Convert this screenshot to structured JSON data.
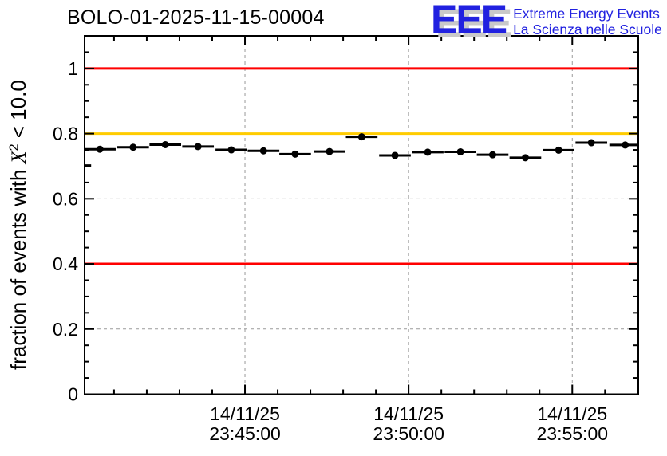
{
  "header": {
    "title": "BOLO-01-2025-11-15-00004",
    "logo": {
      "acronym": "EEE",
      "line1": "Extreme Energy Events",
      "line2": "La Scienza nelle Scuole",
      "blue": "#2121e0",
      "shadow_gray": "#c9c9c9"
    }
  },
  "chart_data": {
    "type": "scatter",
    "title": "BOLO-01-2025-11-15-00004",
    "xlabel": "",
    "ylabel": "fraction of events with X² < 10.0",
    "ylabel_parts": {
      "prefix": "fraction of events with ",
      "symbol": "X",
      "sup": "2",
      "suffix": " < 10.0"
    },
    "ylim": [
      0,
      1.1
    ],
    "x_range": [
      "23:40:06",
      "23:57:01"
    ],
    "date_label": "14/11/25",
    "grid": true,
    "legend": "none",
    "marker": "filled-circle",
    "error_bars": "x",
    "bar_halfwidth_s": 29,
    "colors": {
      "marker": "#000000",
      "frame": "#000000",
      "grid": "#9a9a9a",
      "red_line": "#ff0000",
      "orange_line": "#ffcc00"
    },
    "y_major_ticks": [
      {
        "v": 0,
        "label": "0"
      },
      {
        "v": 0.2,
        "label": "0.2"
      },
      {
        "v": 0.4,
        "label": "0.4"
      },
      {
        "v": 0.6,
        "label": "0.6"
      },
      {
        "v": 0.8,
        "label": "0.8"
      },
      {
        "v": 1.0,
        "label": "1"
      }
    ],
    "y_minor_step": 0.05,
    "x_minor_step_s": 60,
    "x_major_ticks": [
      {
        "time": "23:45:00",
        "line1": "14/11/25",
        "line2": "23:45:00"
      },
      {
        "time": "23:50:00",
        "line1": "14/11/25",
        "line2": "23:50:00"
      },
      {
        "time": "23:55:00",
        "line1": "14/11/25",
        "line2": "23:55:00"
      }
    ],
    "reference_lines": [
      {
        "y": 1.0,
        "color": "#ff0000"
      },
      {
        "y": 0.8,
        "color": "#ffcc00"
      },
      {
        "y": 0.4,
        "color": "#ff0000"
      }
    ],
    "points": [
      {
        "t": "23:39:49",
        "v": 0.702
      },
      {
        "t": "23:40:34",
        "v": 0.752
      },
      {
        "t": "23:41:35",
        "v": 0.758
      },
      {
        "t": "23:42:34",
        "v": 0.766
      },
      {
        "t": "23:43:34",
        "v": 0.76
      },
      {
        "t": "23:44:35",
        "v": 0.75
      },
      {
        "t": "23:45:34",
        "v": 0.747
      },
      {
        "t": "23:46:32",
        "v": 0.737
      },
      {
        "t": "23:47:35",
        "v": 0.745
      },
      {
        "t": "23:48:34",
        "v": 0.79
      },
      {
        "t": "23:49:35",
        "v": 0.733
      },
      {
        "t": "23:50:35",
        "v": 0.743
      },
      {
        "t": "23:51:35",
        "v": 0.744
      },
      {
        "t": "23:52:34",
        "v": 0.735
      },
      {
        "t": "23:53:34",
        "v": 0.726
      },
      {
        "t": "23:54:35",
        "v": 0.749
      },
      {
        "t": "23:55:35",
        "v": 0.772
      },
      {
        "t": "23:56:37",
        "v": 0.765
      }
    ]
  }
}
